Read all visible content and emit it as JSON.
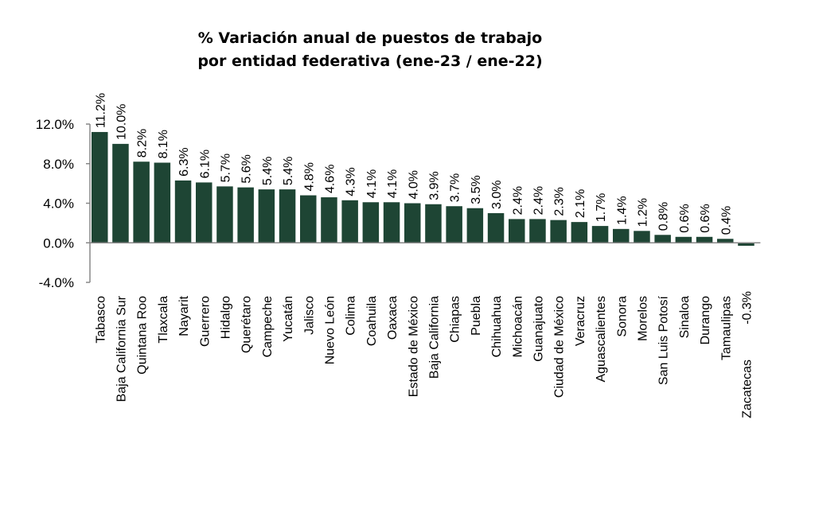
{
  "colors": {
    "bar": "#1e4534",
    "axis": "#888888",
    "text": "#000000"
  },
  "chart_data": {
    "type": "bar",
    "title_lines": [
      "% Variación anual de puestos de trabajo",
      "por entidad federativa (ene-23 / ene-22)"
    ],
    "categories": [
      "Tabasco",
      "Baja California Sur",
      "Quintana Roo",
      "Tlaxcala",
      "Nayarit",
      "Guerrero",
      "Hidalgo",
      "Querétaro",
      "Campeche",
      "Yucatán",
      "Jalisco",
      "Nuevo León",
      "Colima",
      "Coahuila",
      "Oaxaca",
      "Estado de México",
      "Baja California",
      "Chiapas",
      "Puebla",
      "Chihuahua",
      "Michoacán",
      "Guanajuato",
      "Ciudad de México",
      "Veracruz",
      "Aguascalientes",
      "Sonora",
      "Morelos",
      "San Luis Potosí",
      "Sinaloa",
      "Durango",
      "Tamaulipas",
      "Zacatecas"
    ],
    "values": [
      11.2,
      10.0,
      8.2,
      8.1,
      6.3,
      6.1,
      5.7,
      5.6,
      5.4,
      5.4,
      4.8,
      4.6,
      4.3,
      4.1,
      4.1,
      4.0,
      3.9,
      3.7,
      3.5,
      3.0,
      2.4,
      2.4,
      2.3,
      2.1,
      1.7,
      1.4,
      1.2,
      0.8,
      0.6,
      0.6,
      0.4,
      -0.3
    ],
    "data_labels": [
      "11.2%",
      "10.0%",
      "8.2%",
      "8.1%",
      "6.3%",
      "6.1%",
      "5.7%",
      "5.6%",
      "5.4%",
      "5.4%",
      "4.8%",
      "4.6%",
      "4.3%",
      "4.1%",
      "4.1%",
      "4.0%",
      "3.9%",
      "3.7%",
      "3.5%",
      "3.0%",
      "2.4%",
      "2.4%",
      "2.3%",
      "2.1%",
      "1.7%",
      "1.4%",
      "1.2%",
      "0.8%",
      "0.6%",
      "0.6%",
      "0.4%",
      "-0.3%"
    ],
    "y_ticks": [
      12,
      8,
      4,
      0,
      -4
    ],
    "y_tick_labels": [
      "12.0%",
      "8.0%",
      "4.0%",
      "0.0%",
      "-4.0%"
    ],
    "ylim": [
      -4,
      12
    ],
    "grid": false,
    "legend": "none"
  }
}
